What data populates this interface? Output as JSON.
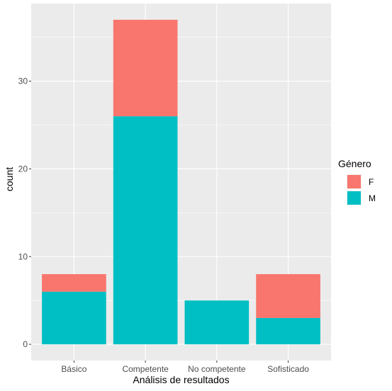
{
  "chart_data": {
    "type": "bar",
    "stacked": true,
    "categories": [
      "Básico",
      "Competente",
      "No competente",
      "Sofisticado"
    ],
    "series": [
      {
        "name": "M",
        "values": [
          6,
          26,
          5,
          3
        ]
      },
      {
        "name": "F",
        "values": [
          2,
          11,
          0,
          5
        ]
      }
    ],
    "colors": {
      "F": "#F8766D",
      "M": "#00BFC4"
    },
    "xlabel": "Análisis de resultados",
    "ylabel": "count",
    "yticks": [
      0,
      10,
      20,
      30
    ],
    "ylim": [
      -1.85,
      38.85
    ],
    "grid": true,
    "panel_background": "#EBEBEB",
    "legend": {
      "title": "Género",
      "position": "right",
      "entries": [
        "F",
        "M"
      ]
    }
  }
}
